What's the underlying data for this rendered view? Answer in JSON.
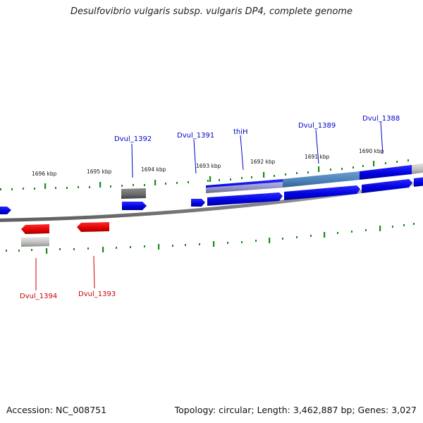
{
  "title": "Desulfovibrio vulgaris subsp. vulgaris DP4, complete genome",
  "footer": {
    "accession": "Accession: NC_008751",
    "summary": "Topology: circular; Length: 3,462,887 bp; Genes: 3,027"
  },
  "colors": {
    "forward_gene": "#0000dd",
    "reverse_gene": "#dd0000",
    "highlight_gene": "#4b80b8",
    "pseudo_gene": "#aaaaaa",
    "ruler_tick": "#1a8a1a",
    "backbone": "#888888"
  },
  "scale_labels": [
    "1696 kbp",
    "1695 kbp",
    "1694 kbp",
    "1693 kbp",
    "1692 kbp",
    "1691 kbp",
    "1690 kbp"
  ],
  "gene_labels": {
    "dvul_1392": "Dvul_1392",
    "dvul_1391": "Dvul_1391",
    "thiH": "thiH",
    "dvul_1389": "Dvul_1389",
    "dvul_1388": "Dvul_1388",
    "dvul_1394": "Dvul_1394",
    "dvul_1393": "Dvul_1393"
  }
}
